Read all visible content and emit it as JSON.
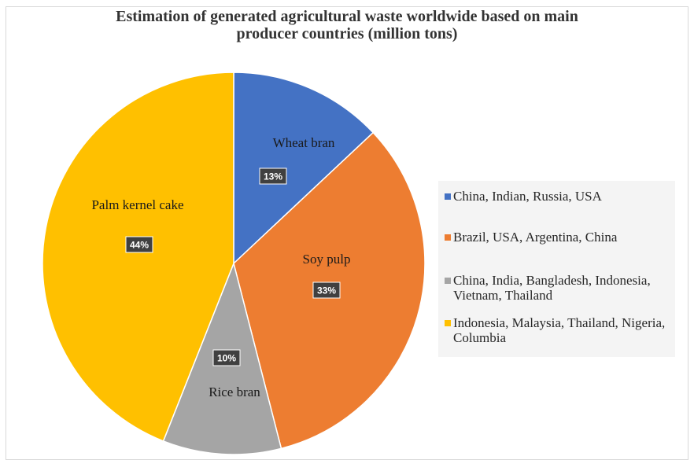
{
  "title_line1": "Estimation of generated agricultural waste worldwide based on main",
  "title_line2": "producer countries (million tons)",
  "chart_data": {
    "type": "pie",
    "title": "Estimation of generated agricultural waste worldwide based on main producer countries (million tons)",
    "slices": [
      {
        "label": "Wheat bran",
        "value": 13,
        "display": "13%",
        "color": "#4472c4",
        "legend": "China, Indian, Russia, USA"
      },
      {
        "label": "Soy pulp",
        "value": 33,
        "display": "33%",
        "color": "#ed7d31",
        "legend": "Brazil, USA, Argentina, China"
      },
      {
        "label": "Rice bran",
        "value": 10,
        "display": "10%",
        "color": "#a5a5a5",
        "legend": "China, India, Bangladesh, Indonesia, Vietnam, Thailand"
      },
      {
        "label": "Palm kernel cake",
        "value": 44,
        "display": "44%",
        "color": "#ffc000",
        "legend": "Indonesia, Malaysia, Thailand, Nigeria, Columbia"
      }
    ],
    "legend_position": "right"
  }
}
